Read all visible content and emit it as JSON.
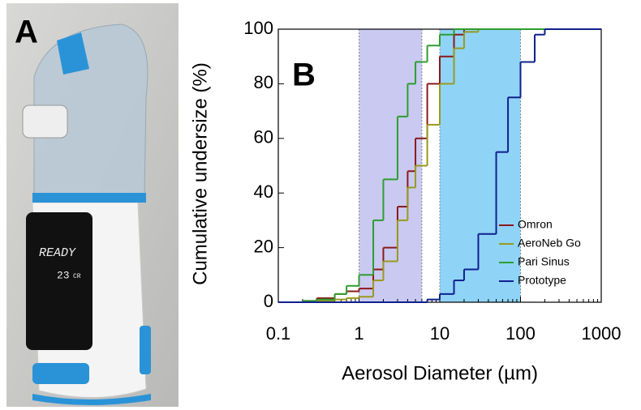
{
  "photo": {
    "panel_label": "A",
    "display_status": "READY",
    "display_number": "23",
    "display_unit": "CR"
  },
  "chart_data": {
    "type": "step",
    "panel_label": "B",
    "x_label": "Aerosol Diameter (µm)",
    "y_label": "Cumulative undersize (%)",
    "x": [
      0.1,
      0.2,
      0.3,
      0.5,
      0.7,
      1,
      1.5,
      2,
      3,
      4,
      5,
      7,
      10,
      15,
      20,
      30,
      50,
      70,
      100,
      150,
      200,
      300,
      1000
    ],
    "series": [
      {
        "name": "Omron",
        "color": "#8b1a1a",
        "values": [
          0,
          0.5,
          1.5,
          3,
          4,
          5,
          12,
          20,
          35,
          48,
          60,
          80,
          90,
          98,
          100,
          100,
          100,
          100,
          100,
          100,
          100,
          100,
          100
        ]
      },
      {
        "name": "AeroNeb Go",
        "color": "#9a9a1e",
        "values": [
          0,
          0,
          0.5,
          1,
          1.5,
          2,
          8,
          15,
          30,
          42,
          50,
          65,
          80,
          93,
          99,
          100,
          100,
          100,
          100,
          100,
          100,
          100,
          100
        ]
      },
      {
        "name": "Pari Sinus",
        "color": "#2e9e2e",
        "values": [
          0,
          0.5,
          1,
          3,
          6,
          10,
          30,
          45,
          68,
          80,
          88,
          94,
          98,
          100,
          100,
          100,
          100,
          100,
          100,
          100,
          100,
          100,
          100
        ]
      },
      {
        "name": "Prototype",
        "color": "#10208e",
        "values": [
          0,
          0,
          0,
          0,
          0,
          0,
          0,
          0,
          0,
          0,
          0,
          1,
          3,
          8,
          12,
          25,
          55,
          75,
          88,
          98,
          100,
          100,
          100
        ]
      }
    ],
    "bands": [
      {
        "from": 1,
        "to": 6,
        "color": "#c9c9f2"
      },
      {
        "from": 10,
        "to": 100,
        "color": "#8fd3f7"
      }
    ],
    "xlim": [
      0.1,
      1000
    ],
    "xticks": [
      0.1,
      1,
      10,
      100,
      1000
    ],
    "log_x": true,
    "ylim": [
      0,
      100
    ],
    "yticks": [
      0,
      20,
      40,
      60,
      80,
      100
    ],
    "legend": "lower-right"
  }
}
